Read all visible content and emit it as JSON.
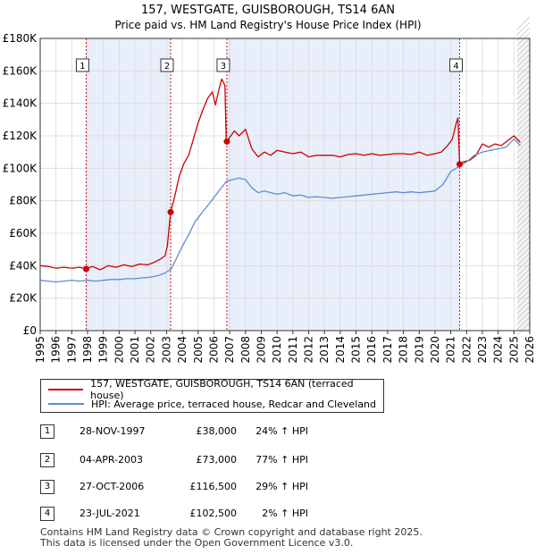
{
  "chart_data": {
    "type": "line",
    "title": "157, WESTGATE, GUISBOROUGH, TS14 6AN",
    "subtitle": "Price paid vs. HM Land Registry's House Price Index (HPI)",
    "xlabel": "",
    "ylabel": "",
    "xlim": [
      1995,
      2026
    ],
    "ylim": [
      0,
      180000
    ],
    "grid": true,
    "x_ticks": [
      "1995",
      "1996",
      "1997",
      "1998",
      "1999",
      "2000",
      "2001",
      "2002",
      "2003",
      "2004",
      "2005",
      "2006",
      "2007",
      "2008",
      "2009",
      "2010",
      "2011",
      "2012",
      "2013",
      "2014",
      "2015",
      "2016",
      "2017",
      "2018",
      "2019",
      "2020",
      "2021",
      "2022",
      "2023",
      "2024",
      "2025",
      "2026"
    ],
    "y_ticks": [
      {
        "value": 0,
        "label": "£0"
      },
      {
        "value": 20000,
        "label": "£20K"
      },
      {
        "value": 40000,
        "label": "£40K"
      },
      {
        "value": 60000,
        "label": "£60K"
      },
      {
        "value": 80000,
        "label": "£80K"
      },
      {
        "value": 100000,
        "label": "£100K"
      },
      {
        "value": 120000,
        "label": "£120K"
      },
      {
        "value": 140000,
        "label": "£140K"
      },
      {
        "value": 160000,
        "label": "£160K"
      },
      {
        "value": 180000,
        "label": "£180K"
      }
    ],
    "series": [
      {
        "name": "157, WESTGATE, GUISBOROUGH, TS14 6AN (terraced house)",
        "color": "#cc0000",
        "x": [
          1995.0,
          1995.5,
          1996.0,
          1996.5,
          1997.0,
          1997.5,
          1997.9,
          1998.3,
          1998.8,
          1999.3,
          1999.8,
          2000.3,
          2000.8,
          2001.3,
          2001.8,
          2002.2,
          2002.6,
          2002.9,
          2003.05,
          2003.26,
          2003.5,
          2003.8,
          2004.1,
          2004.4,
          2004.7,
          2005.0,
          2005.3,
          2005.6,
          2005.9,
          2006.1,
          2006.3,
          2006.5,
          2006.7,
          2006.78,
          2006.82,
          2007.0,
          2007.3,
          2007.6,
          2008.0,
          2008.4,
          2008.8,
          2009.2,
          2009.6,
          2010.0,
          2010.5,
          2011.0,
          2011.5,
          2012.0,
          2012.5,
          2013.0,
          2013.5,
          2014.0,
          2014.5,
          2015.0,
          2015.5,
          2016.0,
          2016.5,
          2017.0,
          2017.5,
          2018.0,
          2018.5,
          2019.0,
          2019.5,
          2020.0,
          2020.4,
          2020.8,
          2021.1,
          2021.35,
          2021.45,
          2021.56,
          2021.8,
          2022.2,
          2022.6,
          2023.0,
          2023.4,
          2023.8,
          2024.2,
          2024.6,
          2025.0,
          2025.4
        ],
        "values": [
          40000,
          39500,
          38500,
          39000,
          38500,
          39000,
          38000,
          39500,
          37500,
          40000,
          39000,
          40500,
          39500,
          41000,
          40500,
          42000,
          44000,
          46000,
          52000,
          73000,
          82000,
          95000,
          103000,
          108000,
          118000,
          128000,
          136000,
          143000,
          147000,
          139000,
          148000,
          155000,
          151000,
          118000,
          116500,
          119000,
          123000,
          120000,
          124000,
          112000,
          107000,
          110000,
          108000,
          111000,
          110000,
          109000,
          110000,
          107000,
          108000,
          108000,
          108000,
          107000,
          108500,
          109000,
          108000,
          109000,
          108000,
          108500,
          109000,
          109000,
          108500,
          110000,
          108000,
          109000,
          110000,
          114000,
          118000,
          128000,
          131000,
          102500,
          104000,
          105000,
          108000,
          115000,
          113000,
          115000,
          114000,
          117000,
          120000,
          116000
        ]
      },
      {
        "name": "HPI: Average price, terraced house, Redcar and Cleveland",
        "color": "#5b8fd0",
        "x": [
          1995.0,
          1995.5,
          1996.0,
          1996.5,
          1997.0,
          1997.5,
          1998.0,
          1998.5,
          1999.0,
          1999.5,
          2000.0,
          2000.5,
          2001.0,
          2001.5,
          2002.0,
          2002.5,
          2002.9,
          2003.3,
          2003.6,
          2004.0,
          2004.4,
          2004.8,
          2005.2,
          2005.6,
          2006.0,
          2006.4,
          2006.8,
          2007.2,
          2007.6,
          2008.0,
          2008.4,
          2008.8,
          2009.2,
          2009.6,
          2010.0,
          2010.5,
          2011.0,
          2011.5,
          2012.0,
          2012.5,
          2013.0,
          2013.5,
          2014.0,
          2014.5,
          2015.0,
          2015.5,
          2016.0,
          2016.5,
          2017.0,
          2017.5,
          2018.0,
          2018.5,
          2019.0,
          2019.5,
          2020.0,
          2020.5,
          2021.0,
          2021.5,
          2022.0,
          2022.5,
          2023.0,
          2023.5,
          2024.0,
          2024.5,
          2025.0,
          2025.4
        ],
        "values": [
          31000,
          30500,
          30000,
          30500,
          31000,
          30500,
          31000,
          30500,
          31000,
          31500,
          31500,
          32000,
          32000,
          32500,
          33000,
          34000,
          35500,
          38000,
          44000,
          52000,
          59000,
          67000,
          72000,
          77000,
          82000,
          87000,
          92000,
          93000,
          94000,
          93000,
          88000,
          85000,
          86000,
          85000,
          84000,
          85000,
          83000,
          83500,
          82000,
          82500,
          82000,
          81500,
          82000,
          82500,
          83000,
          83500,
          84000,
          84500,
          85000,
          85500,
          85000,
          85500,
          85000,
          85500,
          86000,
          90000,
          98000,
          101000,
          104000,
          108000,
          110000,
          111000,
          112000,
          113000,
          118000,
          114000
        ]
      }
    ],
    "sales": [
      {
        "label": "1",
        "x": 1997.91,
        "value": 38000
      },
      {
        "label": "2",
        "x": 2003.26,
        "value": 73000
      },
      {
        "label": "3",
        "x": 2006.82,
        "value": 116500
      },
      {
        "label": "4",
        "x": 2021.56,
        "value": 102500
      }
    ]
  },
  "legend": {
    "property_label": "157, WESTGATE, GUISBOROUGH, TS14 6AN (terraced house)",
    "hpi_label": "HPI: Average price, terraced house, Redcar and Cleveland"
  },
  "table": [
    {
      "num": "1",
      "date": "28-NOV-1997",
      "price": "£38,000",
      "hpi": "24% ↑ HPI"
    },
    {
      "num": "2",
      "date": "04-APR-2003",
      "price": "£73,000",
      "hpi": "77% ↑ HPI"
    },
    {
      "num": "3",
      "date": "27-OCT-2006",
      "price": "£116,500",
      "hpi": "29% ↑ HPI"
    },
    {
      "num": "4",
      "date": "23-JUL-2021",
      "price": "£102,500",
      "hpi": "2% ↑ HPI"
    }
  ],
  "footer": {
    "line1": "Contains HM Land Registry data © Crown copyright and database right 2025.",
    "line2": "This data is licensed under the Open Government Licence v3.0."
  },
  "colors": {
    "property": "#cc0000",
    "hpi": "#5b8fd0",
    "shade": "#e8eefa",
    "grid": "#d9d9d9",
    "marker_line": "#cc0000"
  }
}
